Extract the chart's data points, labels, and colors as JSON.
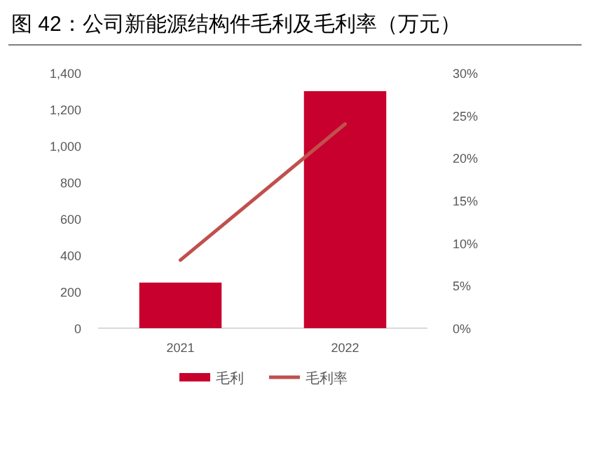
{
  "chart_data": {
    "type": "bar",
    "title": "图 42：公司新能源结构件毛利及毛利率（万元）",
    "categories": [
      "2021",
      "2022"
    ],
    "series": [
      {
        "name": "毛利",
        "color": "#c8002d",
        "values": [
          250,
          1300
        ]
      },
      {
        "name": "毛利率",
        "type": "line",
        "axis": "y2",
        "color": "#c0504d",
        "values": [
          8,
          24
        ]
      }
    ],
    "ylim": [
      0,
      1400
    ],
    "yticks": [
      0,
      200,
      400,
      600,
      800,
      {
        "value": 1000,
        "label": "1,000"
      },
      {
        "value": 1200,
        "label": "1,200"
      },
      {
        "value": 1400,
        "label": "1,400"
      }
    ],
    "y2lim": [
      0,
      30
    ],
    "y2ticks": [
      {
        "value": 0,
        "label": "0%"
      },
      {
        "value": 5,
        "label": "5%"
      },
      {
        "value": 10,
        "label": "10%"
      },
      {
        "value": 15,
        "label": "15%"
      },
      {
        "value": 20,
        "label": "20%"
      },
      {
        "value": 25,
        "label": "25%"
      },
      {
        "value": 30,
        "label": "30%"
      }
    ],
    "grid": false,
    "legend": "bottom"
  }
}
